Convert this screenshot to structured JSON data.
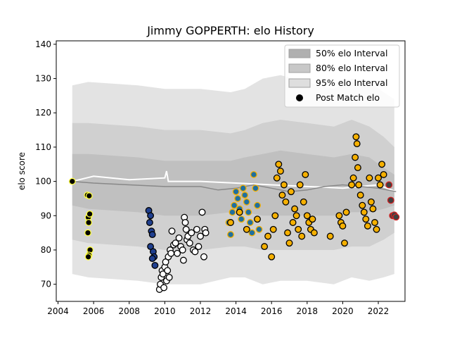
{
  "chart_data": {
    "type": "scatter",
    "title": "Jimmy GOPPERTH: elo History",
    "xlabel": "",
    "ylabel": "elo score",
    "xlim": [
      2003.9,
      2023.5
    ],
    "ylim": [
      65,
      141
    ],
    "x_ticks": [
      2004,
      2006,
      2008,
      2010,
      2012,
      2014,
      2016,
      2018,
      2020,
      2022
    ],
    "x_tick_labels": [
      "2004",
      "2006",
      "2008",
      "2010",
      "2012",
      "2014",
      "2016",
      "2018",
      "2020",
      "2022"
    ],
    "y_ticks": [
      70,
      80,
      90,
      100,
      110,
      120,
      130,
      140
    ],
    "y_tick_labels": [
      "70",
      "80",
      "90",
      "100",
      "110",
      "120",
      "130",
      "140"
    ],
    "legend": {
      "placement": "top-right",
      "entries": [
        {
          "label": "50% elo Interval",
          "color": "#b0b0b0"
        },
        {
          "label": "80% elo Interval",
          "color": "#c8c8c8"
        },
        {
          "label": "95% elo Interval",
          "color": "#dedede"
        },
        {
          "label": "Post Match elo",
          "color": "#000000"
        }
      ]
    },
    "intervals": {
      "interval_95": {
        "color": "#dedede",
        "x": [
          2004.8,
          2005.7,
          2008.5,
          2010.0,
          2012.0,
          2013.7,
          2014.5,
          2015.5,
          2016.5,
          2018.0,
          2019.5,
          2020.5,
          2021.5,
          2022.3,
          2022.9
        ],
        "upper": [
          128,
          129,
          128,
          127,
          127,
          126,
          127,
          130,
          131,
          129,
          127,
          130,
          129,
          126,
          124
        ],
        "lower": [
          73,
          72,
          71,
          70,
          70,
          72,
          72,
          70,
          71,
          71,
          70,
          72,
          71,
          72,
          73
        ]
      },
      "interval_80": {
        "color": "#cccccc",
        "x": [
          2004.8,
          2005.7,
          2008.5,
          2010.0,
          2012.0,
          2013.7,
          2014.5,
          2015.5,
          2016.5,
          2018.0,
          2019.5,
          2020.5,
          2021.5,
          2022.3,
          2022.9
        ],
        "upper": [
          117,
          117,
          116,
          115,
          115,
          114,
          115,
          117,
          118,
          117,
          116,
          118,
          116,
          113,
          110
        ],
        "lower": [
          83,
          82,
          81,
          80,
          80,
          81,
          81,
          80,
          80,
          80,
          80,
          81,
          81,
          83,
          85
        ]
      },
      "interval_50": {
        "color": "#bdbdbd",
        "x": [
          2004.8,
          2005.7,
          2008.5,
          2010.0,
          2012.0,
          2013.7,
          2014.5,
          2015.5,
          2016.5,
          2018.0,
          2019.5,
          2020.5,
          2021.5,
          2022.3,
          2022.9
        ],
        "upper": [
          108,
          108,
          107,
          106,
          106,
          106,
          107,
          108,
          109,
          108,
          107,
          108,
          107,
          104,
          102
        ],
        "lower": [
          93,
          92,
          91,
          90,
          90,
          91,
          91,
          90,
          90,
          90,
          90,
          91,
          91,
          92,
          93
        ]
      }
    },
    "series": [
      {
        "color": "#ffff40",
        "x": [
          2004.8,
          2005.65,
          2005.75,
          2005.7,
          2005.78,
          2005.72,
          2005.68,
          2005.8,
          2005.74,
          2005.7
        ],
        "y": [
          100,
          96,
          95.8,
          89.5,
          90.5,
          88,
          85,
          80,
          78.5,
          78
        ]
      },
      {
        "color": "#1f3f8f",
        "x": [
          2009.1,
          2009.15,
          2009.2,
          2009.25,
          2009.3,
          2009.2,
          2009.35,
          2009.4,
          2009.3,
          2009.45
        ],
        "y": [
          91.5,
          88,
          90,
          85.5,
          84.5,
          81,
          79.5,
          78,
          77.5,
          75.5
        ]
      },
      {
        "color": "#ffffff",
        "x": [
          2009.7,
          2009.75,
          2009.8,
          2009.85,
          2009.9,
          2009.95,
          2010.0,
          2010.05,
          2010.1,
          2010.15,
          2010.2,
          2010.25,
          2010.3,
          2010.35,
          2010.4,
          2010.5,
          2010.6,
          2010.7,
          2010.8,
          2010.9,
          2011.0,
          2011.05,
          2011.1,
          2011.15,
          2011.2,
          2011.25,
          2011.3,
          2011.4,
          2011.5,
          2011.6,
          2011.7,
          2011.8,
          2011.9,
          2012.0,
          2012.1,
          2012.2,
          2012.25,
          2012.3
        ],
        "y": [
          68.5,
          70,
          72,
          74,
          73,
          69,
          75,
          76.5,
          71,
          74,
          78,
          72,
          80,
          79,
          85.5,
          81.5,
          82,
          79,
          83.5,
          81,
          80,
          77,
          89.5,
          88,
          86,
          83,
          84,
          82,
          85,
          80,
          79.5,
          86,
          81,
          84,
          91,
          78,
          86,
          85
        ]
      },
      {
        "color": "#1f6f9f",
        "x": [
          2013.6,
          2013.7,
          2013.8,
          2013.9,
          2014.0,
          2014.1,
          2014.2,
          2014.3,
          2014.4,
          2014.5,
          2014.6,
          2014.7,
          2014.8,
          2014.9,
          2015.0,
          2015.1,
          2015.2,
          2015.3
        ],
        "y": [
          88,
          84.5,
          91,
          93,
          97,
          95,
          92,
          89,
          98,
          96,
          94,
          91,
          88,
          85,
          102,
          98,
          93,
          86
        ]
      },
      {
        "color": "#f5b000",
        "x": [
          2013.7,
          2014.2,
          2014.6,
          2015.2,
          2015.6,
          2015.8,
          2016.0,
          2016.1,
          2016.2,
          2016.3,
          2016.4,
          2016.5,
          2016.6,
          2016.7,
          2016.8,
          2016.9,
          2017.0,
          2017.1,
          2017.2,
          2017.3,
          2017.4,
          2017.5,
          2017.6,
          2017.7,
          2017.8,
          2017.9,
          2018.0,
          2018.1,
          2018.2,
          2018.3,
          2018.4,
          2019.3,
          2019.8,
          2019.9,
          2020.0,
          2020.1,
          2020.2,
          2020.5,
          2020.6,
          2020.7,
          2020.75,
          2020.8,
          2020.85,
          2020.9,
          2021.0,
          2021.1,
          2021.2,
          2021.3,
          2021.4,
          2021.5,
          2021.6,
          2021.7,
          2021.8,
          2021.9,
          2022.0,
          2022.1,
          2022.2,
          2022.3
        ],
        "y": [
          88,
          91,
          86,
          89,
          81,
          84,
          78,
          86,
          90,
          101,
          105,
          103,
          96,
          99,
          94,
          85,
          82,
          97,
          88,
          92,
          90,
          86,
          99,
          84,
          94,
          102,
          90,
          88,
          86,
          89,
          85,
          84,
          90,
          88,
          87,
          82,
          91,
          99,
          101,
          107,
          113,
          111,
          104,
          99,
          96,
          93,
          91,
          89,
          87,
          101,
          94,
          92,
          88,
          86,
          101,
          99,
          105,
          102
        ]
      },
      {
        "color": "#d02020",
        "x": [
          2022.6,
          2022.7,
          2022.8,
          2022.9,
          2023.0
        ],
        "y": [
          99,
          94.5,
          90,
          90.2,
          89.6
        ]
      }
    ],
    "lines": [
      {
        "color": "#ffffff",
        "x": [
          2004.8,
          2006.0,
          2008.0,
          2010.0,
          2010.1,
          2010.2,
          2012.0,
          2014.0,
          2016.0,
          2018.0,
          2019.0,
          2020.0,
          2021.0,
          2022.0,
          2023.0
        ],
        "y": [
          100,
          101.5,
          100.5,
          101,
          103,
          100,
          100,
          99.5,
          99,
          98.5,
          98.3,
          98,
          98.5,
          99,
          97
        ]
      },
      {
        "color": "#888888",
        "x": [
          2004.8,
          2006.0,
          2008.0,
          2010.0,
          2012.0,
          2013.0,
          2014.0,
          2015.0,
          2016.0,
          2017.0,
          2018.0,
          2019.0,
          2020.0,
          2021.0,
          2022.0,
          2023.0
        ],
        "y": [
          100,
          99.5,
          99,
          98.5,
          98.5,
          97.5,
          98,
          99,
          98,
          97,
          97.5,
          98.5,
          99,
          98.5,
          98,
          97
        ]
      }
    ]
  }
}
